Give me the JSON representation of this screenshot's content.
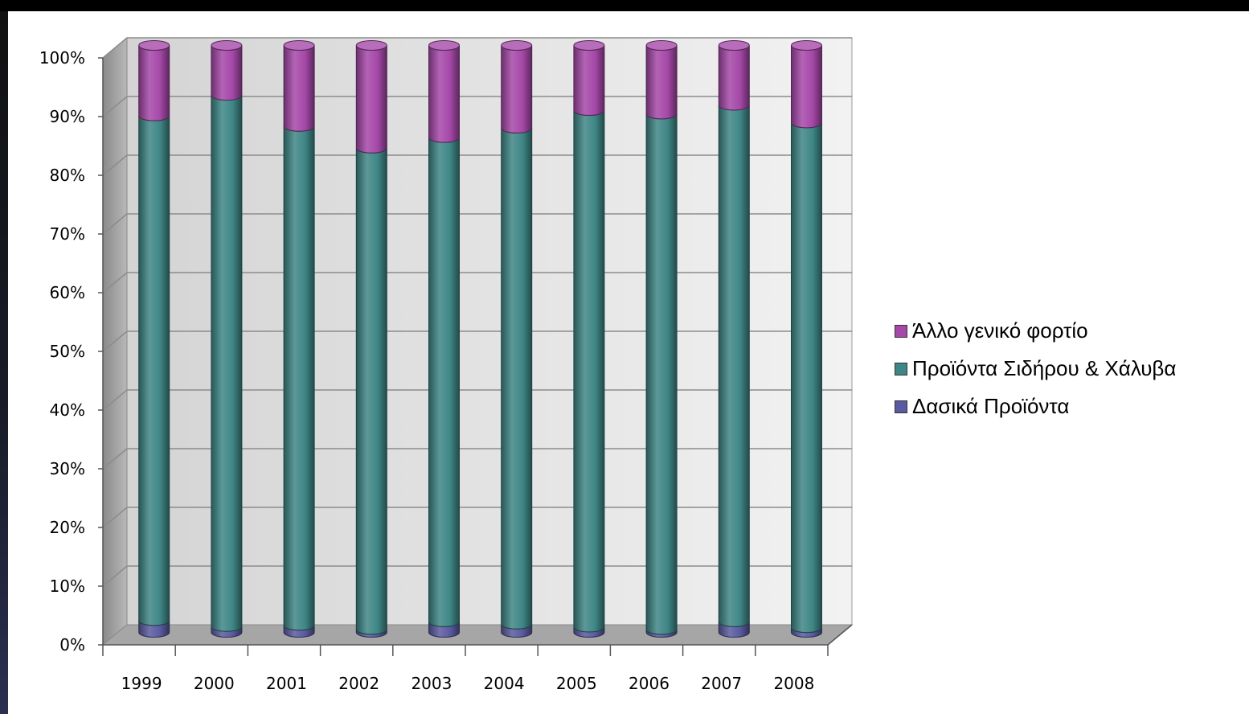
{
  "chart_data": {
    "type": "bar",
    "stacked": "percent",
    "style": "3d-cylinder",
    "title": "",
    "xlabel": "",
    "ylabel": "",
    "categories": [
      "1999",
      "2000",
      "2001",
      "2002",
      "2003",
      "2004",
      "2005",
      "2006",
      "2007",
      "2008"
    ],
    "yticks": [
      "0%",
      "10%",
      "20%",
      "30%",
      "40%",
      "50%",
      "60%",
      "70%",
      "80%",
      "90%",
      "100%"
    ],
    "ylim": [
      0,
      100
    ],
    "grid": true,
    "legend_position": "right",
    "series": [
      {
        "name": "Δασικά Προϊόντα",
        "color": "#5a5aa0",
        "values": [
          2.0,
          1.0,
          1.2,
          0.5,
          1.8,
          1.4,
          0.9,
          0.5,
          1.8,
          0.8
        ]
      },
      {
        "name": "Προϊόντα Σιδήρου & Χάλυβα",
        "color": "#3f8686",
        "values": [
          86.0,
          90.5,
          85.0,
          82.0,
          82.5,
          84.5,
          88.0,
          87.8,
          88.0,
          86.0
        ]
      },
      {
        "name": "Άλλο γενικό φορτίο",
        "color": "#a548a8",
        "values": [
          12.0,
          8.5,
          13.8,
          17.5,
          15.7,
          14.1,
          11.1,
          11.7,
          10.2,
          13.2
        ]
      }
    ],
    "legend_order": [
      2,
      1,
      0
    ]
  }
}
